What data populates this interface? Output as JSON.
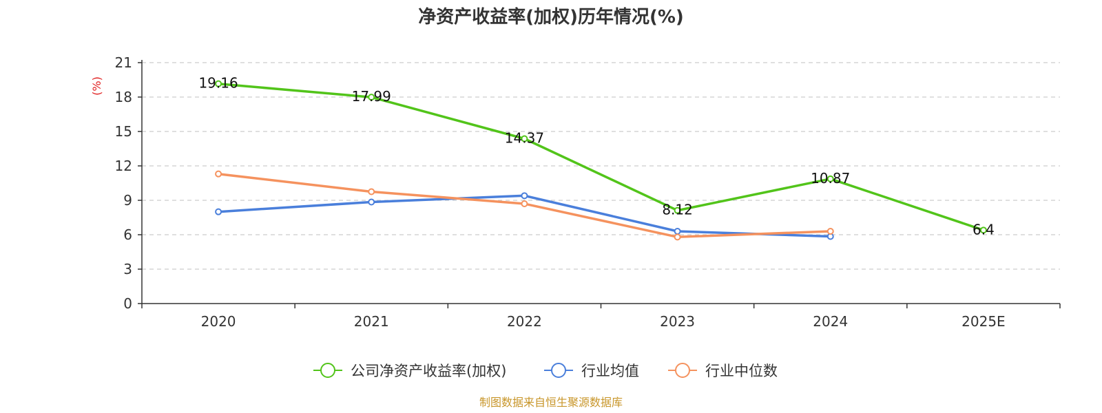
{
  "chart_data": {
    "type": "line",
    "title": "净资产收益率(加权)历年情况(%)",
    "ylabel": "(%)",
    "xlabel": "",
    "categories": [
      "2020",
      "2021",
      "2022",
      "2023",
      "2024",
      "2025E"
    ],
    "yticks": [
      0,
      3,
      6,
      9,
      12,
      15,
      18,
      21
    ],
    "ylim": [
      0,
      21
    ],
    "grid": "horizontal dashed",
    "legend_position": "bottom-center",
    "series": [
      {
        "name": "公司净资产收益率(加权)",
        "color": "#52c41a",
        "values": [
          19.16,
          17.99,
          14.37,
          8.12,
          10.87,
          6.4
        ],
        "show_labels": true
      },
      {
        "name": "行业均值",
        "color": "#4a7fdb",
        "values": [
          8.0,
          8.85,
          9.4,
          6.3,
          5.85,
          null
        ],
        "show_labels": false
      },
      {
        "name": "行业中位数",
        "color": "#f5925e",
        "values": [
          11.3,
          9.75,
          8.7,
          5.8,
          6.3,
          null
        ],
        "show_labels": false
      }
    ],
    "source": "制图数据来自恒生聚源数据库"
  },
  "colors": {
    "axis": "#333333",
    "grid": "#cccccc",
    "unit_label": "#e02020",
    "source": "#c8962a"
  }
}
